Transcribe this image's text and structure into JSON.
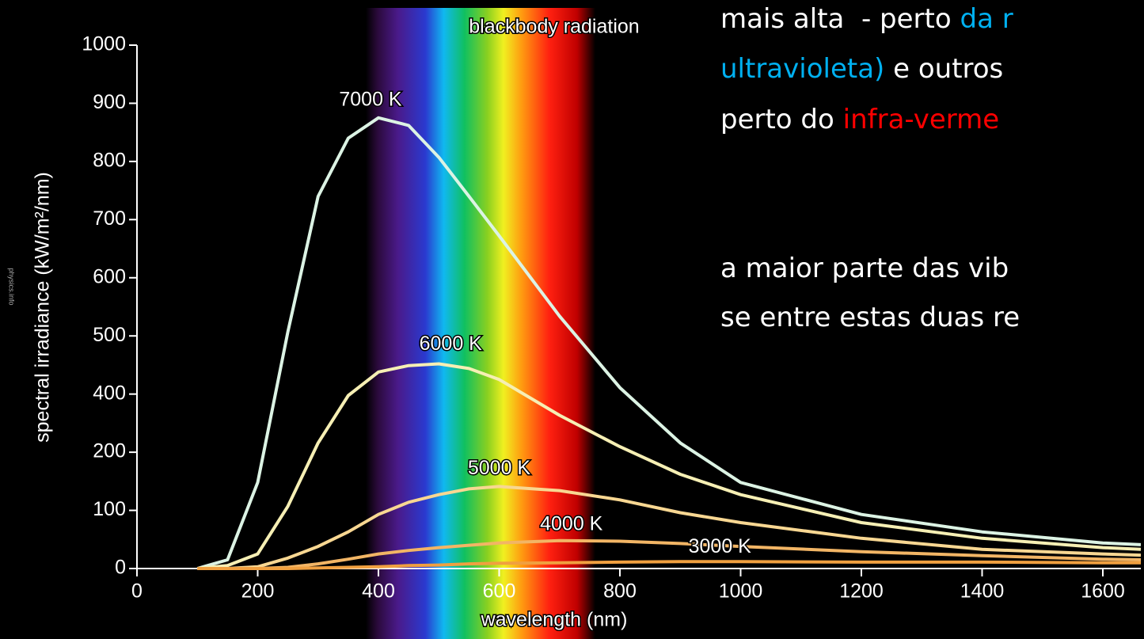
{
  "chart_data": {
    "type": "line",
    "title": "blackbody radiation",
    "source": "physics.info",
    "x_label": "wavelength (nm)",
    "y_label": "spectral irradiance (kW/m²/nm)",
    "x": [
      100,
      150,
      200,
      250,
      300,
      350,
      400,
      450,
      500,
      550,
      600,
      700,
      800,
      900,
      1000,
      1200,
      1400,
      1600,
      1663
    ],
    "series": [
      {
        "name": "7000 K",
        "color": "#dcf3e4",
        "values": [
          0,
          15,
          148,
          507,
          740,
          840,
          875,
          862,
          807,
          740,
          672,
          534,
          411,
          232,
          148,
          93,
          63,
          44,
          41
        ]
      },
      {
        "name": "6000 K",
        "color": "#f6efb4",
        "values": [
          0,
          5,
          25,
          107,
          232,
          395,
          438,
          449,
          452,
          444,
          425,
          327,
          219,
          162,
          127,
          79,
          52,
          36,
          33
        ]
      },
      {
        "name": "5000 K",
        "color": "#f8d792",
        "values": [
          0,
          0,
          3,
          18,
          38,
          63,
          93,
          114,
          127,
          137,
          141,
          134,
          118,
          96,
          79,
          52,
          33,
          25,
          23
        ]
      },
      {
        "name": "4000 K",
        "color": "#f2b565",
        "values": [
          0,
          0,
          0,
          2,
          8,
          16,
          25,
          31,
          36,
          40,
          44,
          48,
          47,
          43,
          38,
          29,
          22,
          16,
          15
        ]
      },
      {
        "name": "3000 K",
        "color": "#f0a040",
        "values": [
          0,
          0,
          0,
          0,
          1,
          2,
          3,
          5,
          6,
          8,
          9,
          10,
          11,
          12,
          12,
          11,
          11,
          10,
          10
        ]
      }
    ],
    "xlim": [
      0,
      1663
    ],
    "xticks": [
      0,
      200,
      400,
      600,
      800,
      1000,
      1200,
      1400,
      1600
    ],
    "ylim": [
      0,
      1000
    ],
    "yticks": [
      0,
      100,
      200,
      400,
      500,
      600,
      700,
      800,
      900,
      1000
    ]
  },
  "slide_text": [
    [
      {
        "text": "mais alta  - perto ",
        "color": "#ffffff"
      },
      {
        "text": "da r",
        "color": "#00b0f0"
      }
    ],
    [
      {
        "text": "ultravioleta)",
        "color": "#00b0f0"
      },
      {
        "text": " e outros",
        "color": "#ffffff"
      }
    ],
    [
      {
        "text": "perto do ",
        "color": "#ffffff"
      },
      {
        "text": "infra-verme",
        "color": "#ff0000"
      }
    ],
    [
      {
        "text": "a maior parte das vib",
        "color": "#ffffff"
      }
    ],
    [
      {
        "text": "se entre estas duas re",
        "color": "#ffffff"
      }
    ]
  ]
}
